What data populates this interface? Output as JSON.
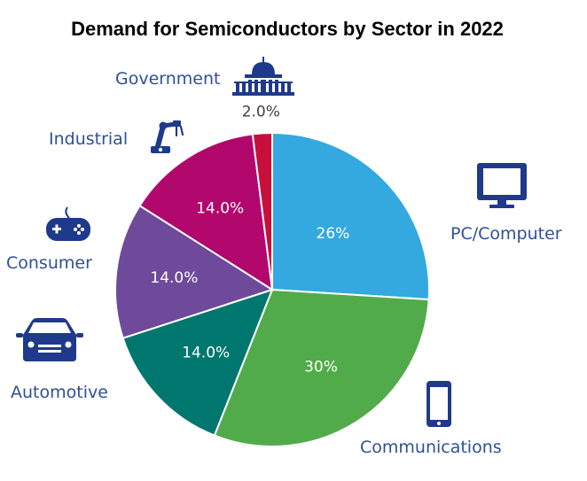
{
  "chart_data": {
    "type": "pie",
    "title": "Demand for Semiconductors by Sector in 2022",
    "categories": [
      "PC/Computer",
      "Communications",
      "Automotive",
      "Consumer",
      "Industrial",
      "Government"
    ],
    "values": [
      26,
      30,
      14,
      14,
      14,
      2
    ],
    "labels": [
      "26%",
      "30%",
      "14.0%",
      "14.0%",
      "14.0%",
      "2.0%"
    ],
    "colors": [
      "#33a9df",
      "#52ab4a",
      "#00776e",
      "#6f4a9b",
      "#b2076c",
      "#c80f3c"
    ],
    "label_color": "#2f4f9a",
    "icon_color": "#1f3a8a",
    "icons": [
      "monitor-icon",
      "smartphone-icon",
      "car-icon",
      "gamepad-icon",
      "robot-arm-icon",
      "capitol-building-icon"
    ]
  }
}
